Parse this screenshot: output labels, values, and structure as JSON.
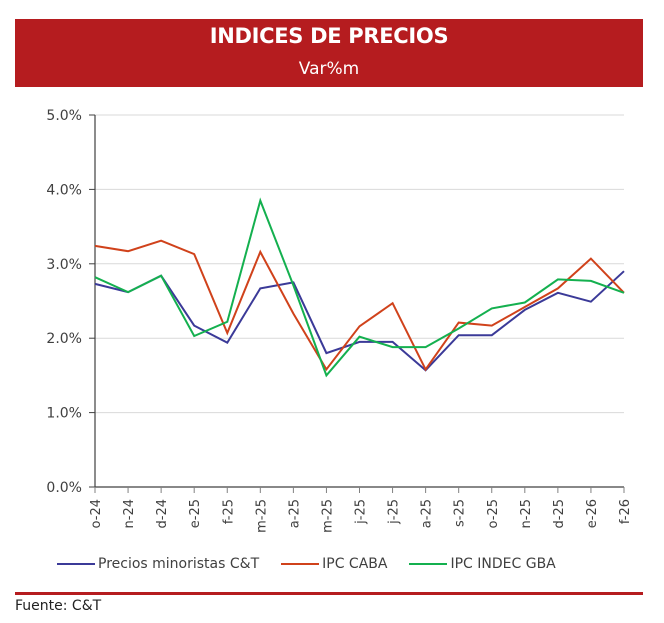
{
  "header": {
    "title": "INDICES DE PRECIOS",
    "subtitle": "Var%m"
  },
  "colors": {
    "header_band": "#b51c1f",
    "series_blue": "#3b3a98",
    "series_orange": "#d0421b",
    "series_green": "#14b04f"
  },
  "chart_data": {
    "type": "line",
    "title": "INDICES DE PRECIOS",
    "subtitle": "Var%m",
    "xlabel": "",
    "ylabel": "",
    "categories": [
      "o-24",
      "n-24",
      "d-24",
      "e-25",
      "f-25",
      "m-25",
      "a-25",
      "m-25",
      "j-25",
      "j-25",
      "a-25",
      "s-25",
      "o-25",
      "n-25",
      "d-25",
      "e-26",
      "f-26"
    ],
    "ylim": [
      0,
      5
    ],
    "yticks": [
      0,
      1,
      2,
      3,
      4,
      5
    ],
    "ytick_labels": [
      "0.0%",
      "1.0%",
      "2.0%",
      "3.0%",
      "4.0%",
      "5.0%"
    ],
    "grid": true,
    "legend_position": "bottom",
    "series": [
      {
        "name": "Precios minoristas C&T",
        "color": "#3b3a98",
        "values": [
          2.73,
          2.62,
          2.84,
          2.17,
          1.94,
          2.67,
          2.75,
          1.8,
          1.95,
          1.95,
          1.57,
          2.04,
          2.04,
          2.38,
          2.61,
          2.49,
          2.9
        ]
      },
      {
        "name": "IPC CABA",
        "color": "#d0421b",
        "values": [
          3.24,
          3.17,
          3.31,
          3.13,
          2.07,
          3.16,
          2.33,
          1.58,
          2.16,
          2.47,
          1.58,
          2.21,
          2.17,
          2.42,
          2.67,
          3.07,
          2.61
        ]
      },
      {
        "name": "IPC INDEC GBA",
        "color": "#14b04f",
        "values": [
          2.82,
          2.62,
          2.84,
          2.03,
          2.22,
          3.85,
          2.71,
          1.5,
          2.02,
          1.88,
          1.88,
          2.13,
          2.4,
          2.48,
          2.79,
          2.77,
          2.61
        ]
      }
    ]
  },
  "legend": [
    {
      "label": "Precios minoristas C&T",
      "color": "#3b3a98"
    },
    {
      "label": "IPC CABA",
      "color": "#d0421b"
    },
    {
      "label": "IPC INDEC GBA",
      "color": "#14b04f"
    }
  ],
  "footer": {
    "source": "Fuente: C&T"
  }
}
